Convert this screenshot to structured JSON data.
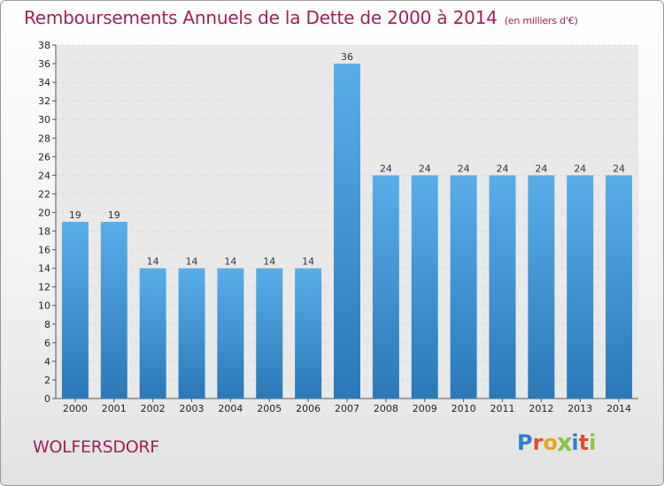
{
  "chart_data": {
    "type": "bar",
    "title": "Remboursements Annuels de la Dette de 2000 à 2014",
    "subtitle": "(en milliers d'€)",
    "categories": [
      "2000",
      "2001",
      "2002",
      "2003",
      "2004",
      "2005",
      "2006",
      "2007",
      "2008",
      "2009",
      "2010",
      "2011",
      "2012",
      "2013",
      "2014"
    ],
    "values": [
      19,
      19,
      14,
      14,
      14,
      14,
      14,
      36,
      24,
      24,
      24,
      24,
      24,
      24,
      24
    ],
    "xlabel": "",
    "ylabel": "",
    "ylim": [
      0,
      38
    ],
    "yticks": [
      0,
      2,
      4,
      6,
      8,
      10,
      12,
      14,
      16,
      18,
      20,
      22,
      24,
      26,
      28,
      30,
      32,
      34,
      36,
      38
    ],
    "grid": true
  },
  "location": "WOLFERSDORF",
  "logo": {
    "letters": [
      "P",
      "r",
      "o",
      "x",
      "i",
      "t",
      "i"
    ],
    "colors": [
      "#2e7fd0",
      "#e84b2a",
      "#f0a020",
      "#8bc53f",
      "#2e7fd0",
      "#e84b2a",
      "#8bc53f"
    ]
  },
  "colors": {
    "title": "#a0205a",
    "bar_light": "#5aaee8",
    "bar_dark": "#2a78b8",
    "grid": "#d9d9d9",
    "plot_bg": "#e9e9e9"
  }
}
